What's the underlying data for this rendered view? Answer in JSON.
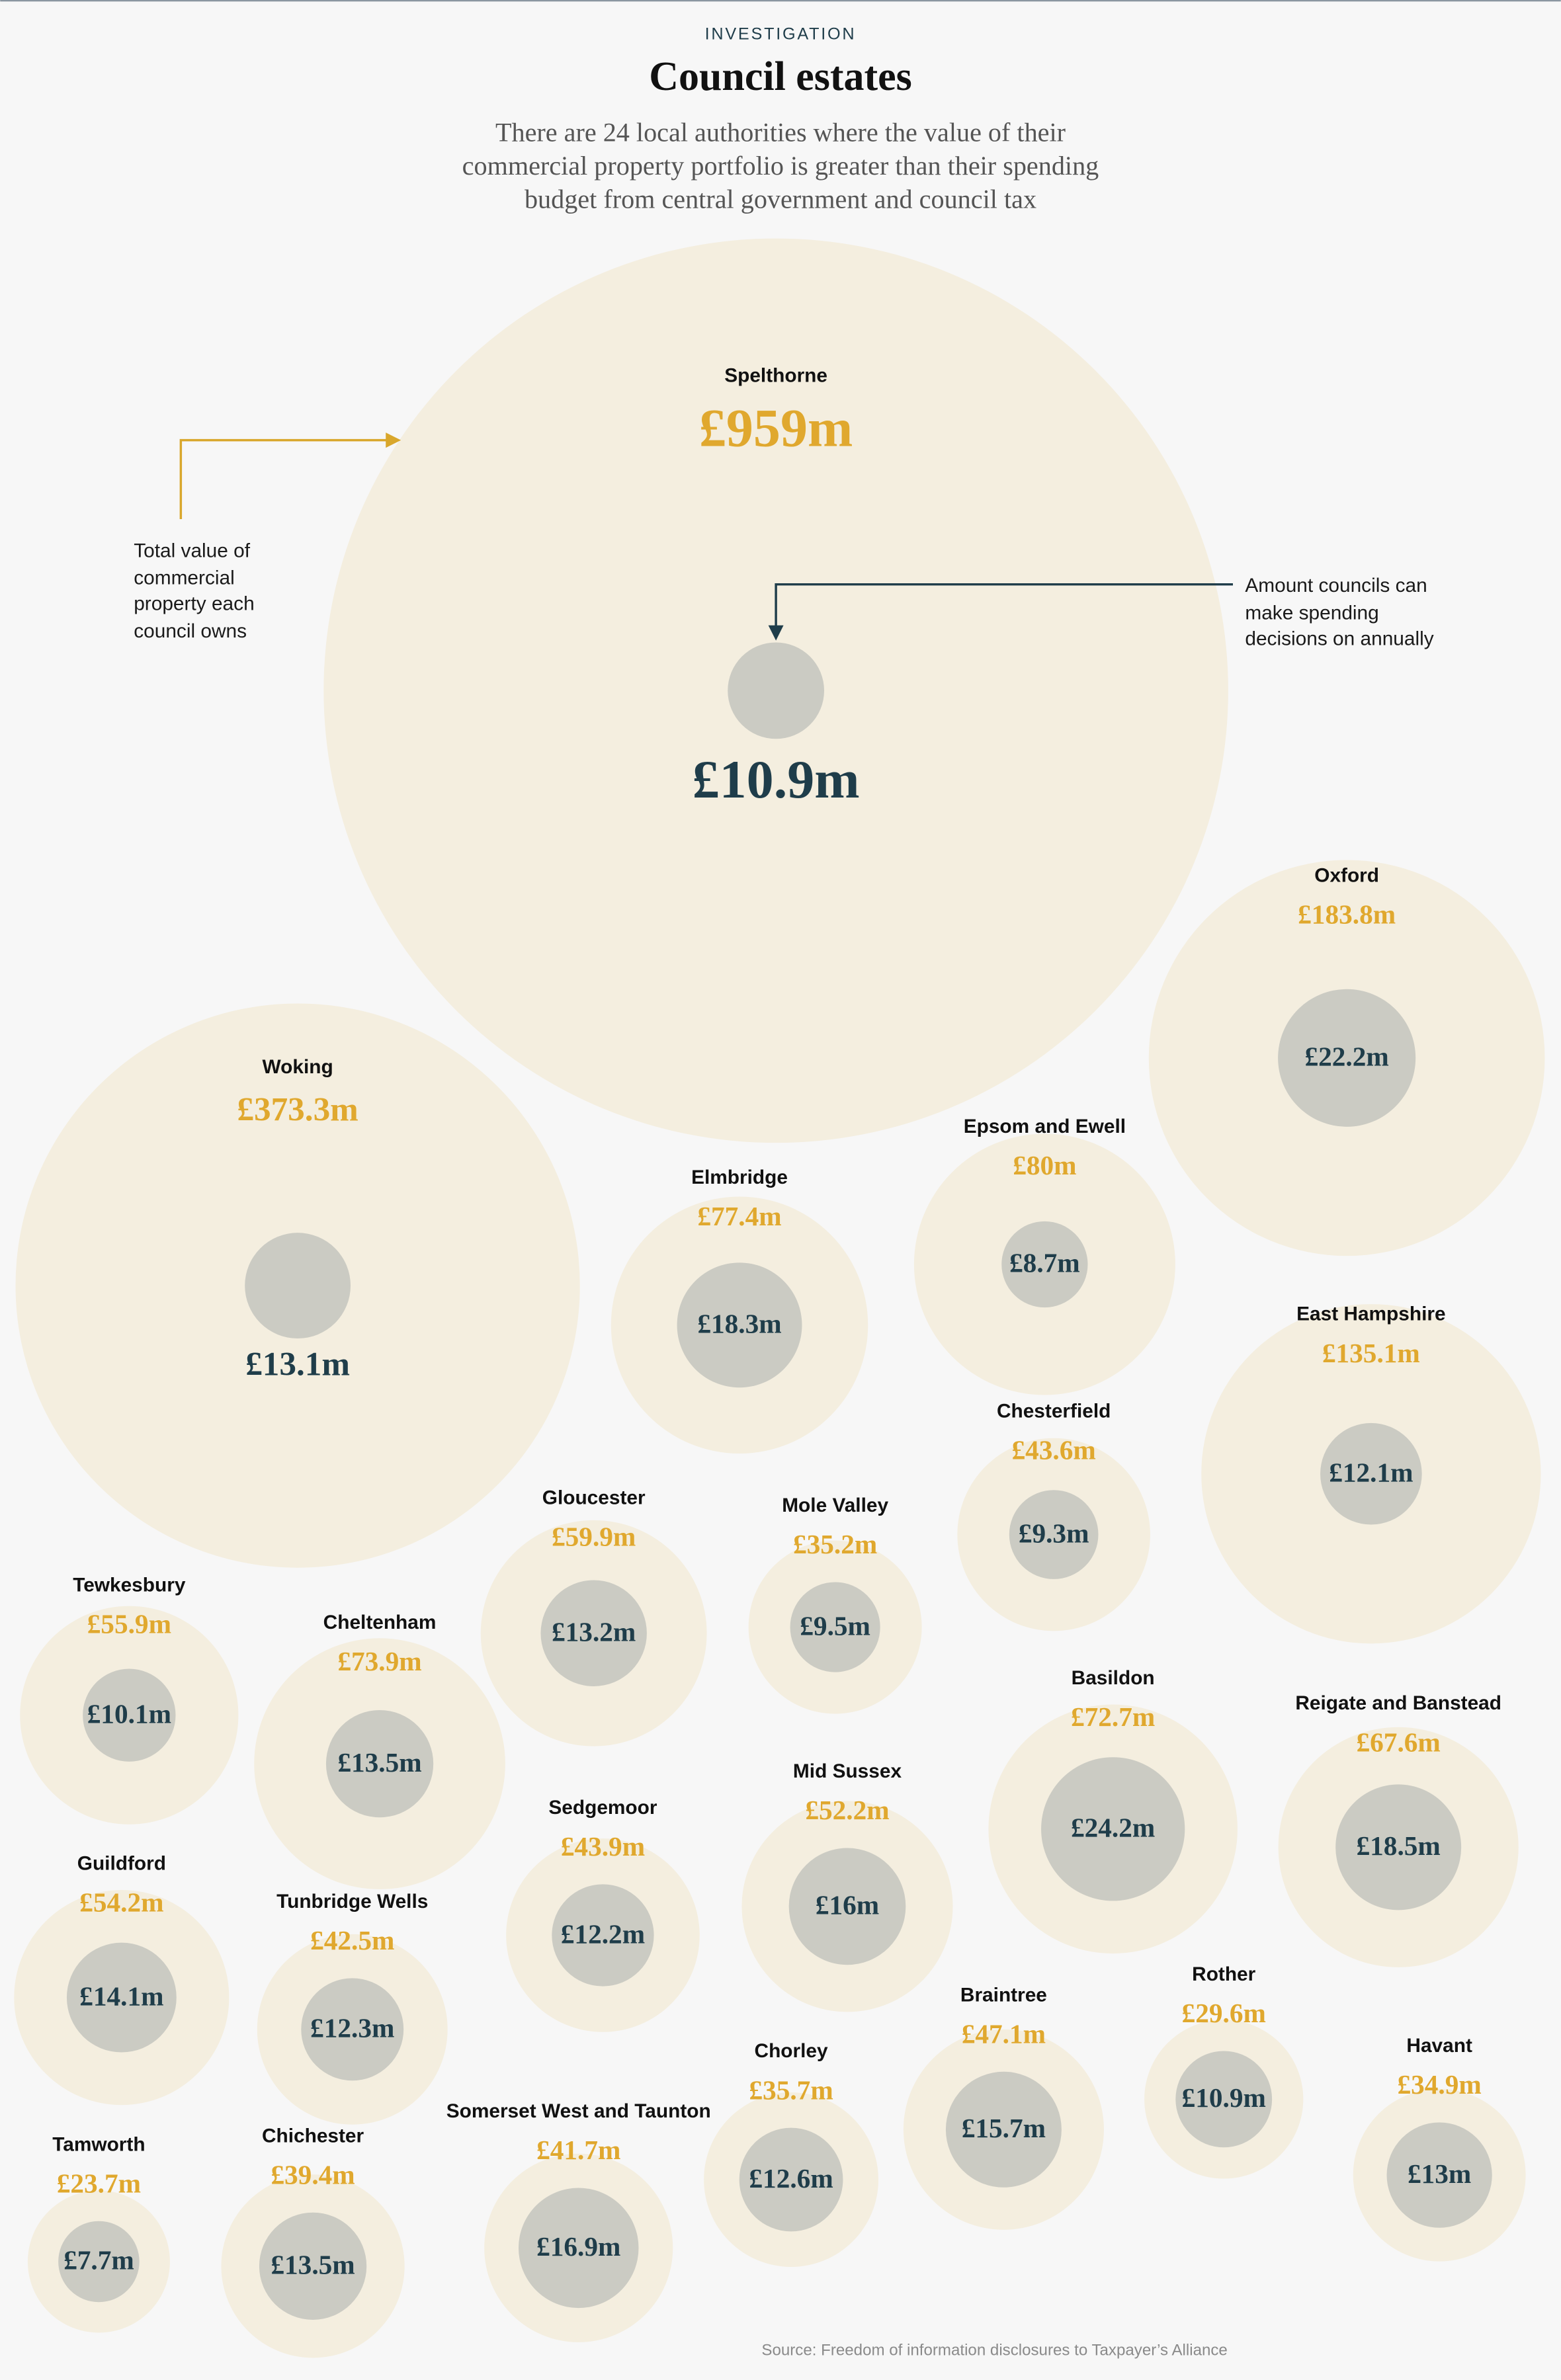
{
  "chart_data": {
    "type": "bubble",
    "kicker": "INVESTIGATION",
    "title": "Council estates",
    "subtitle": "There are 24 local authorities where the value of their commercial property portfolio is greater than their spending budget from central government and council tax",
    "source": "Source:  Freedom of information disclosures to Taxpayer’s Alliance",
    "categories": [
      "Spelthorne",
      "Woking",
      "Oxford",
      "Elmbridge",
      "Epsom and Ewell",
      "East Hampshire",
      "Chesterfield",
      "Gloucester",
      "Mole Valley",
      "Tewkesbury",
      "Cheltenham",
      "Basildon",
      "Reigate and Banstead",
      "Sedgemoor",
      "Mid Sussex",
      "Guildford",
      "Tunbridge Wells",
      "Braintree",
      "Rother",
      "Havant",
      "Chorley",
      "Somerset West and Taunton",
      "Tamworth",
      "Chichester"
    ],
    "series": [
      {
        "name": "Total value of commercial property each council owns",
        "color": "#f4eedf",
        "label_color": "#e0a82e",
        "values": [
          959,
          373.3,
          183.8,
          77.4,
          80,
          135.1,
          43.6,
          59.9,
          35.2,
          55.9,
          73.9,
          72.7,
          67.6,
          43.9,
          52.2,
          54.2,
          42.5,
          47.1,
          29.6,
          34.9,
          35.7,
          41.7,
          23.7,
          39.4
        ],
        "value_labels": [
          "£959m",
          "£373.3m",
          "£183.8m",
          "£77.4m",
          "£80m",
          "£135.1m",
          "£43.6m",
          "£59.9m",
          "£35.2m",
          "£55.9m",
          "£73.9m",
          "£72.7m",
          "£67.6m",
          "£43.9m",
          "£52.2m",
          "£54.2m",
          "£42.5m",
          "£47.1m",
          "£29.6m",
          "£34.9m",
          "£35.7m",
          "£41.7m",
          "£23.7m",
          "£39.4m"
        ]
      },
      {
        "name": "Amount councils can make spending decisions on annually",
        "color": "#cbcbc3",
        "label_color": "#1f3d4a",
        "values": [
          10.9,
          13.1,
          22.2,
          18.3,
          8.7,
          12.1,
          9.3,
          13.2,
          9.5,
          10.1,
          13.5,
          24.2,
          18.5,
          12.2,
          16,
          14.1,
          12.3,
          15.7,
          10.9,
          13,
          12.6,
          16.9,
          7.7,
          13.5
        ],
        "value_labels": [
          "£10.9m",
          "£13.1m",
          "£22.2m",
          "£18.3m",
          "£8.7m",
          "£12.1m",
          "£9.3m",
          "£13.2m",
          "£9.5m",
          "£10.1m",
          "£13.5m",
          "£24.2m",
          "£18.5m",
          "£12.2m",
          "£16m",
          "£14.1m",
          "£12.3m",
          "£15.7m",
          "£10.9m",
          "£13m",
          "£12.6m",
          "£16.9m",
          "£7.7m",
          "£13.5m"
        ]
      }
    ]
  }
}
